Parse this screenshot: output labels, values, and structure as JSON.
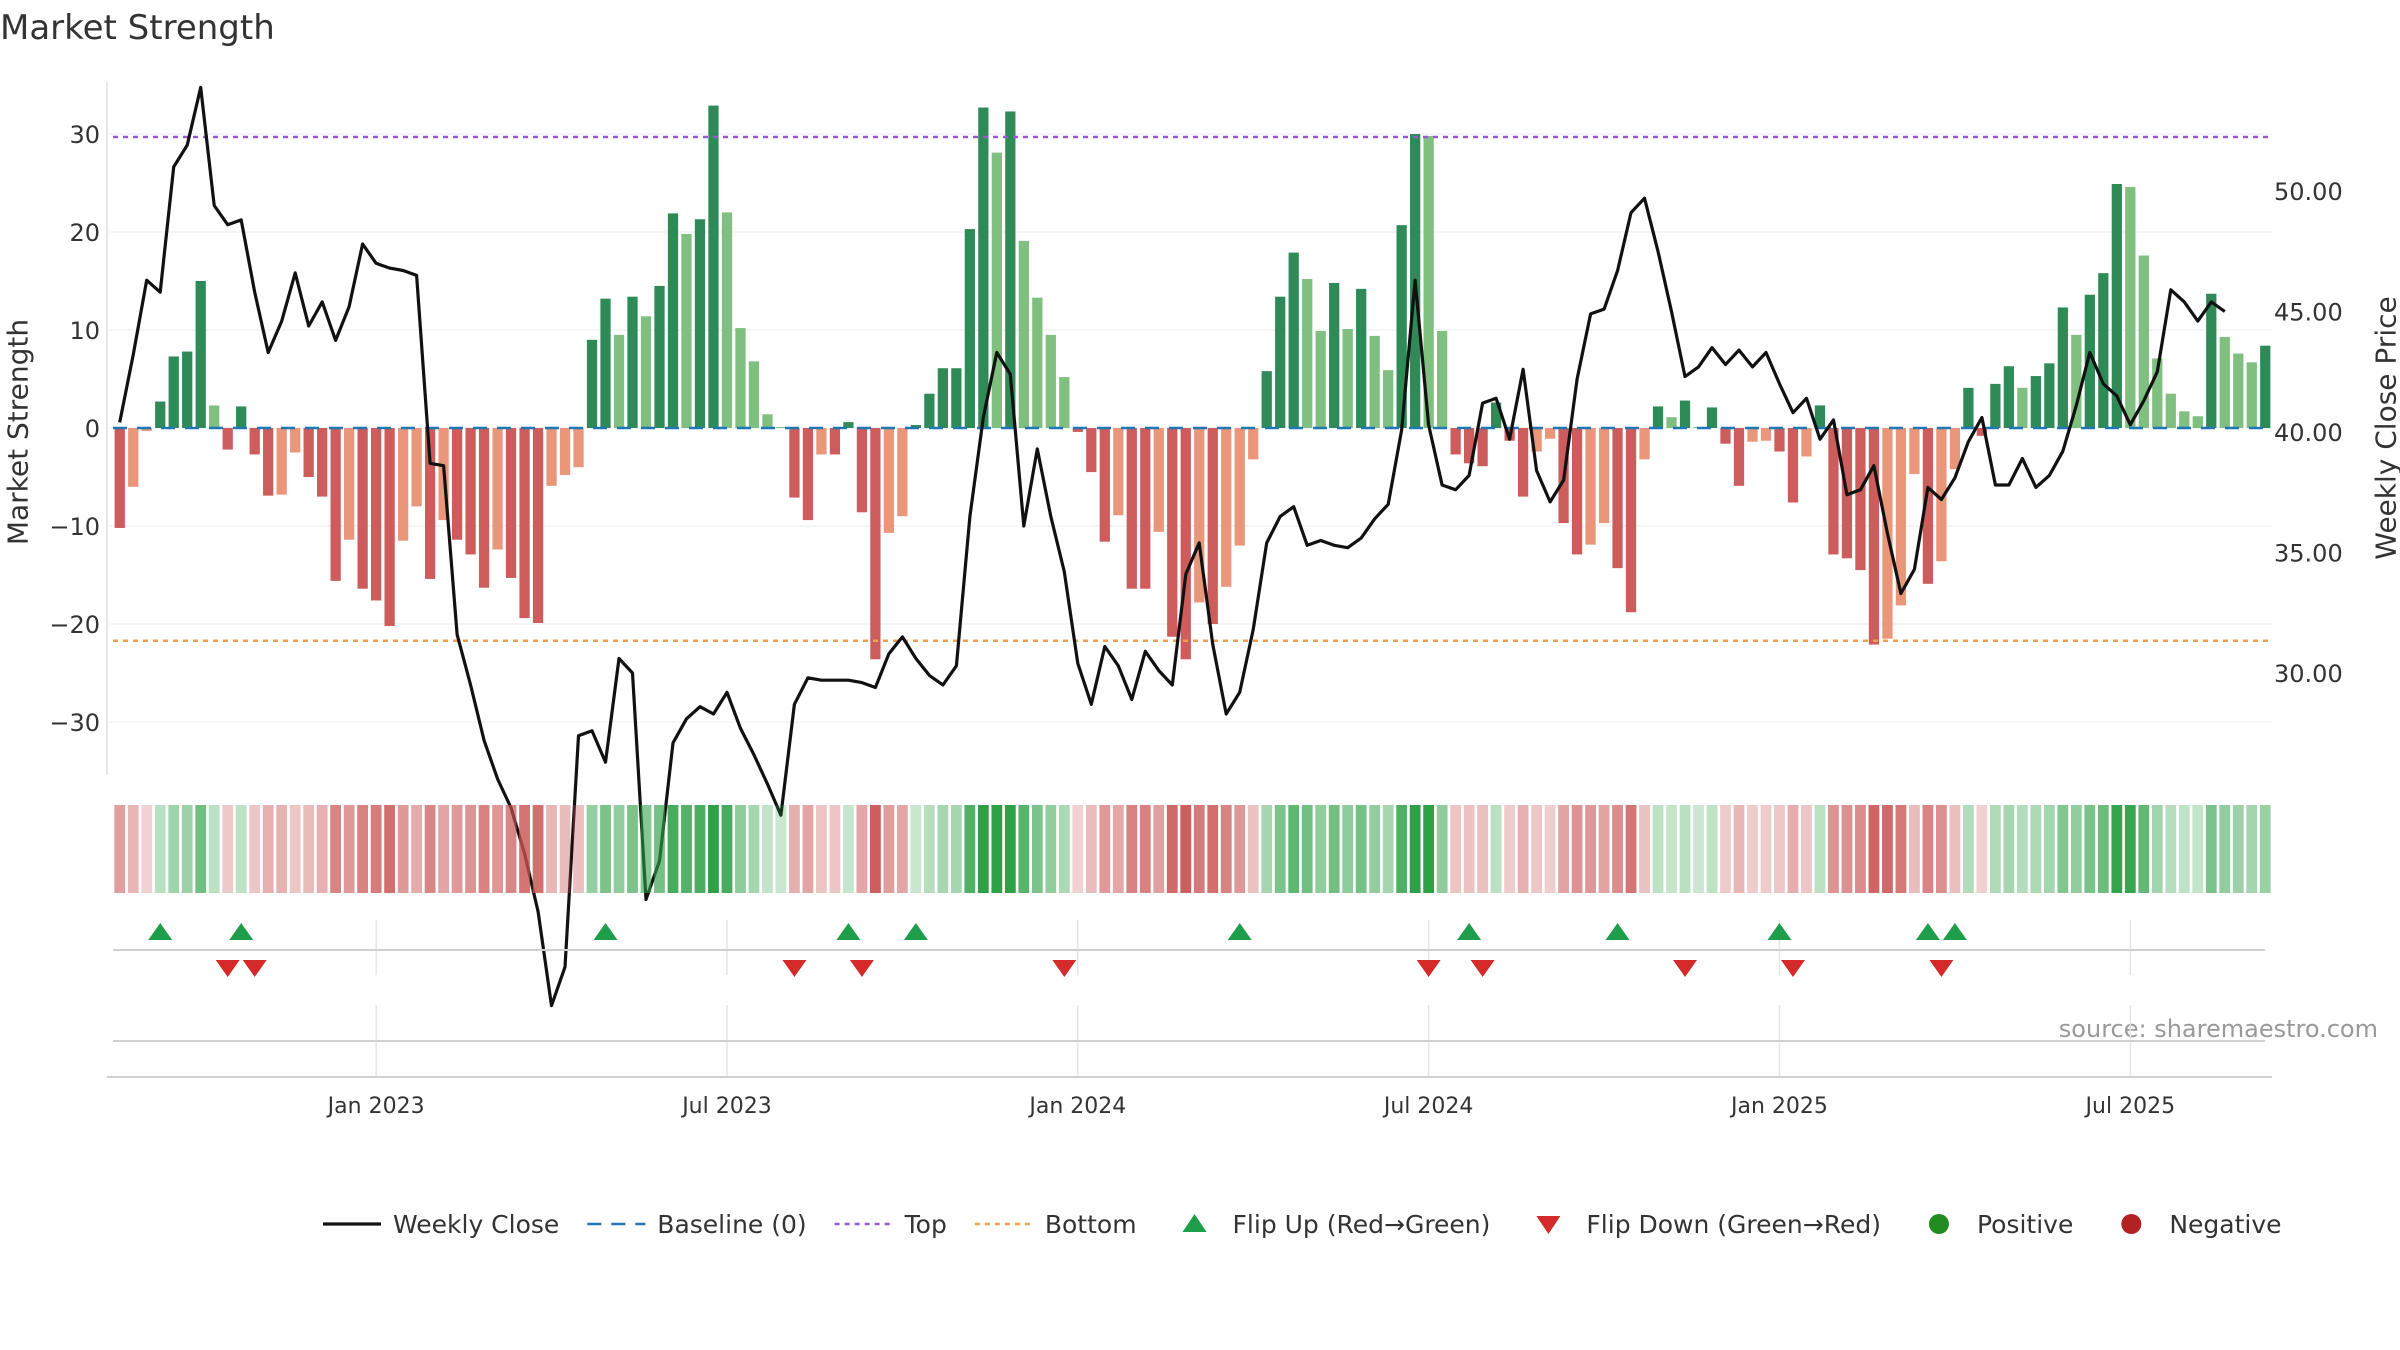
{
  "title": "Market Strength",
  "source_note": "source: sharemaestro.com",
  "chart_data": {
    "type": "bar+line",
    "title": "Market Strength",
    "ylabel_left": "Market Strength",
    "ylabel_right": "Weekly Close Price",
    "ylim_left": [
      -35,
      35
    ],
    "ylim_right": [
      26,
      55
    ],
    "yticks_left": [
      30,
      20,
      10,
      0,
      -10,
      -20,
      -30
    ],
    "ytick_labels_left": [
      "30",
      "20",
      "10",
      "0",
      "−10",
      "−20",
      "−30"
    ],
    "yticks_right": [
      50,
      45,
      40,
      35,
      30
    ],
    "ytick_labels_right": [
      "50.00",
      "45.00",
      "40.00",
      "35.00",
      "30.00"
    ],
    "x_tick_labels": [
      "Jan 2023",
      "Jul 2023",
      "Jan 2024",
      "Jul 2024",
      "Jan 2025",
      "Jul 2025"
    ],
    "x_tick_weeks": [
      19,
      45,
      71,
      97,
      123,
      149
    ],
    "top_line": 30,
    "bottom_line": -21.5,
    "baseline": 0,
    "strength": [
      -10.2,
      -6,
      -0.3,
      2.7,
      7.3,
      7.8,
      15,
      2.3,
      -2.2,
      2.2,
      -2.7,
      -6.9,
      -6.8,
      -2.5,
      -5,
      -7,
      -15.6,
      -11.4,
      -16.4,
      -17.6,
      -20.2,
      -11.5,
      -8,
      -15.4,
      -9.4,
      -11.4,
      -12.9,
      -16.3,
      -12.4,
      -15.3,
      -19.4,
      -19.9,
      -5.9,
      -4.8,
      -4,
      9,
      13.2,
      9.5,
      13.4,
      11.4,
      14.5,
      21.9,
      19.8,
      21.3,
      32.9,
      22,
      10.2,
      6.8,
      1.4,
      0.1,
      -7.1,
      -9.4,
      -2.7,
      -2.7,
      0.6,
      -8.6,
      -23.6,
      -10.7,
      -9,
      0.3,
      3.5,
      6.1,
      6.1,
      20.3,
      32.7,
      28.1,
      32.3,
      19.1,
      13.3,
      9.5,
      5.2,
      -0.4,
      -4.5,
      -11.6,
      -8.9,
      -16.4,
      -16.4,
      -10.6,
      -21.3,
      -23.6,
      -17.8,
      -20,
      -16.2,
      -12,
      -3.2,
      5.8,
      13.4,
      17.9,
      15.2,
      9.9,
      14.8,
      10.1,
      14.2,
      9.4,
      5.9,
      20.7,
      30,
      29.8,
      9.9,
      -2.7,
      -3.6,
      -3.9,
      2.6,
      -1.3,
      -7,
      -2.4,
      -1.1,
      -9.7,
      -12.9,
      -11.9,
      -9.7,
      -14.3,
      -18.8,
      -3.2,
      2.2,
      1.1,
      2.8,
      0.1,
      2.1,
      -1.6,
      -5.9,
      -1.4,
      -1.3,
      -2.4,
      -7.6,
      -2.9,
      2.3,
      -12.9,
      -13.3,
      -14.5,
      -22.1,
      -21.5,
      -18.1,
      -4.7,
      -15.9,
      -13.6,
      -4.2,
      4.1,
      -0.8,
      4.5,
      6.3,
      4.1,
      5.3,
      6.6,
      12.3,
      9.5,
      13.6,
      15.8,
      24.9,
      24.6,
      17.6,
      7.1,
      3.5,
      1.7,
      1.2,
      13.7,
      9.3,
      7.6,
      6.7,
      8.4
    ],
    "weekly_close": [
      40.4,
      43.2,
      46.3,
      45.8,
      51,
      51.9,
      54.3,
      49.4,
      48.6,
      48.8,
      45.8,
      43.3,
      44.6,
      46.6,
      44.4,
      45.4,
      43.8,
      45.2,
      47.8,
      47,
      46.8,
      46.7,
      46.5,
      38.7,
      38.6,
      31.6,
      29.5,
      27.2,
      25.6,
      24.4,
      22.5,
      20.1,
      16.2,
      17.8,
      27.4,
      27.6,
      26.3,
      30.6,
      30,
      20.6,
      22.2,
      27.1,
      28.1,
      28.6,
      28.3,
      29.2,
      27.7,
      26.6,
      25.4,
      24.1,
      28.7,
      29.8,
      29.7,
      29.7,
      29.7,
      29.6,
      29.4,
      30.8,
      31.5,
      30.6,
      29.9,
      29.5,
      30.3,
      36.5,
      40.6,
      43.3,
      42.4,
      36.1,
      39.3,
      36.5,
      34.2,
      30.4,
      28.7,
      31.1,
      30.3,
      28.9,
      30.9,
      30.1,
      29.5,
      34.1,
      35.4,
      31.2,
      28.3,
      29.2,
      31.8,
      35.4,
      36.5,
      36.9,
      35.3,
      35.5,
      35.3,
      35.2,
      35.6,
      36.4,
      37,
      40.1,
      46.3,
      40.3,
      37.8,
      37.6,
      38.2,
      41.2,
      41.4,
      39.7,
      42.6,
      38.4,
      37.1,
      38,
      42.2,
      44.9,
      45.1,
      46.7,
      49.1,
      49.7,
      47.5,
      45,
      42.3,
      42.7,
      43.5,
      42.8,
      43.4,
      42.7,
      43.3,
      42,
      40.8,
      41.4,
      39.7,
      40.5,
      37.4,
      37.6,
      38.6,
      35.8,
      33.3,
      34.3,
      37.7,
      37.2,
      38.1,
      39.6,
      40.6,
      37.8,
      37.8,
      38.9,
      37.7,
      38.2,
      39.2,
      41.1,
      43.3,
      42,
      41.5,
      40.3,
      41.3,
      42.5,
      45.9,
      45.4,
      44.6,
      45.4,
      45
    ]
  },
  "flip_up_weeks": [
    3,
    9,
    36,
    54,
    59,
    83,
    100,
    111,
    123,
    134,
    136
  ],
  "flip_down_weeks": [
    8,
    10,
    50,
    55,
    70,
    97,
    101,
    116,
    124,
    135
  ],
  "colors": {
    "dark_green": "#2e8b57",
    "light_green": "#7fbf7f",
    "dark_red": "#cd5c5c",
    "light_red": "#e9967a",
    "top_line": "#9b59d0",
    "bottom_line": "#f0a050",
    "baseline": "#1f77b4",
    "close_line": "#111111",
    "flip_up": "#1e9e4a",
    "flip_down": "#d42a2a",
    "positive": "#228b22",
    "negative": "#b22222"
  },
  "legend": [
    {
      "label": "Weekly Close",
      "kind": "line"
    },
    {
      "label": "Baseline (0)",
      "kind": "dash"
    },
    {
      "label": "Top",
      "kind": "dotted-purple"
    },
    {
      "label": "Bottom",
      "kind": "dotted-orange"
    },
    {
      "label": "Flip Up (Red→Green)",
      "kind": "tri-up"
    },
    {
      "label": "Flip Down (Green→Red)",
      "kind": "tri-down"
    },
    {
      "label": "Positive",
      "kind": "dot-green"
    },
    {
      "label": "Negative",
      "kind": "dot-red"
    }
  ]
}
